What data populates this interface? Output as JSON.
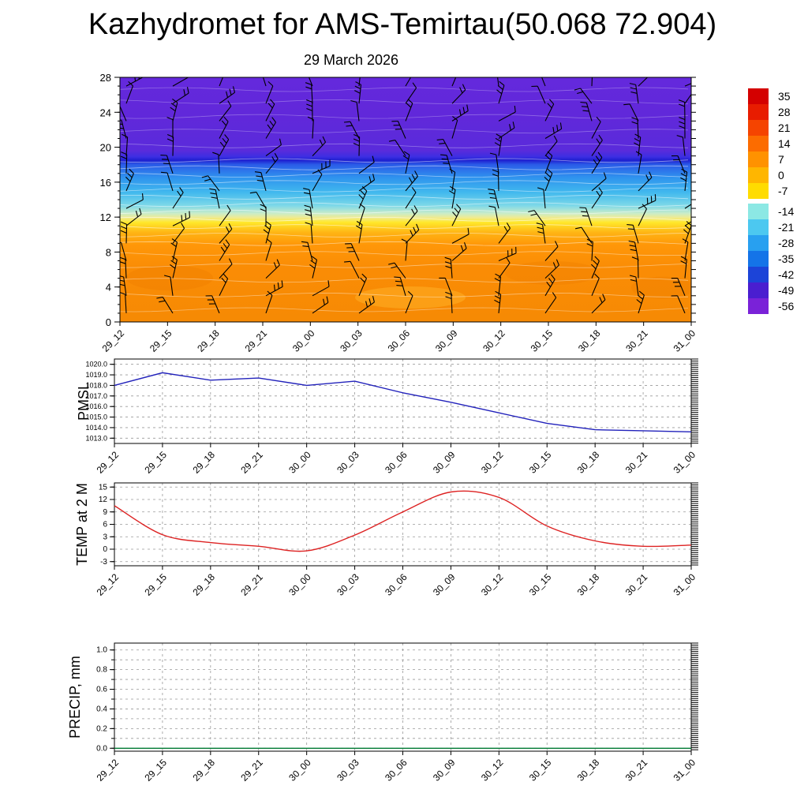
{
  "title": "Kazhydromet for AMS-Temirtau(50.068 72.904)",
  "subtitle": "29 March 2026",
  "time_labels": [
    "29_12",
    "29_15",
    "29_18",
    "29_21",
    "30_00",
    "30_03",
    "30_06",
    "30_09",
    "30_12",
    "30_15",
    "30_18",
    "30_21",
    "31_00"
  ],
  "chart_data": [
    {
      "id": "cross_section",
      "type": "heatmap",
      "title": "29 March 2026",
      "xlabel": "",
      "ylabel": "",
      "ylim": [
        0,
        28
      ],
      "yticks": [
        0,
        4,
        8,
        12,
        16,
        20,
        24,
        28
      ],
      "categories": [
        "29_12",
        "29_15",
        "29_18",
        "29_21",
        "30_00",
        "30_03",
        "30_06",
        "30_09",
        "30_12",
        "30_15",
        "30_18",
        "30_21",
        "31_00"
      ],
      "field_description": "time-height temperature cross-section: orange below level 12, yellow band near level 12, cyan to blue for levels 13-18, violet above level 18; faint white contour lines and black wind barbs overlaid",
      "colorbar_ticks": [
        35,
        28,
        21,
        14,
        7,
        0,
        -7,
        -14,
        -21,
        -28,
        -35,
        -42,
        -49,
        -56
      ],
      "colorbar_colors": [
        "#d40000",
        "#e81c00",
        "#f54400",
        "#fc6c00",
        "#ff9200",
        "#ffb600",
        "#ffdc00",
        "#8ce8e4",
        "#4cc8f0",
        "#28a0f0",
        "#1474e8",
        "#1c44d8",
        "#4a1ed0",
        "#7a22d8"
      ],
      "wind_barbs": {
        "columns": 13,
        "rows": 14,
        "color": "#000000"
      }
    },
    {
      "id": "pmsl",
      "type": "line",
      "ylabel": "PMSL",
      "color": "#2222bb",
      "ylim": [
        1013.0,
        1020.0
      ],
      "yticks": [
        1013.0,
        1014.0,
        1015.0,
        1016.0,
        1017.0,
        1018.0,
        1019.0,
        1020.0
      ],
      "categories": [
        "29_12",
        "29_15",
        "29_18",
        "29_21",
        "30_00",
        "30_03",
        "30_06",
        "30_09",
        "30_12",
        "30_15",
        "30_18",
        "30_21",
        "31_00"
      ],
      "values": [
        1018.0,
        1019.2,
        1018.5,
        1018.7,
        1018.0,
        1018.4,
        1017.3,
        1016.4,
        1015.4,
        1014.4,
        1013.8,
        1013.7,
        1013.6
      ]
    },
    {
      "id": "temp2m",
      "type": "line",
      "ylabel": "TEMP at 2 M",
      "color": "#dd2222",
      "ylim": [
        -3,
        15
      ],
      "yticks": [
        -3,
        0,
        3,
        6,
        9,
        12,
        15
      ],
      "categories": [
        "29_12",
        "29_15",
        "29_18",
        "29_21",
        "30_00",
        "30_03",
        "30_06",
        "30_09",
        "30_12",
        "30_15",
        "30_18",
        "30_21",
        "31_00"
      ],
      "values": [
        10.5,
        3.5,
        1.6,
        0.7,
        -0.4,
        3.4,
        9.0,
        13.8,
        12.5,
        5.6,
        2.0,
        0.7,
        1.0
      ]
    },
    {
      "id": "precip",
      "type": "line",
      "ylabel": "PRECIP, mm",
      "color": "#007a33",
      "ylim": [
        0.0,
        1.0
      ],
      "yticks": [
        0.0,
        0.2,
        0.4,
        0.6,
        0.8,
        1.0
      ],
      "categories": [
        "29_12",
        "29_15",
        "29_18",
        "29_21",
        "30_00",
        "30_03",
        "30_06",
        "30_09",
        "30_12",
        "30_15",
        "30_18",
        "30_21",
        "31_00"
      ],
      "values": [
        0.0,
        0.0,
        0.0,
        0.0,
        0.0,
        0.0,
        0.0,
        0.0,
        0.0,
        0.0,
        0.0,
        0.0,
        0.0
      ]
    }
  ]
}
